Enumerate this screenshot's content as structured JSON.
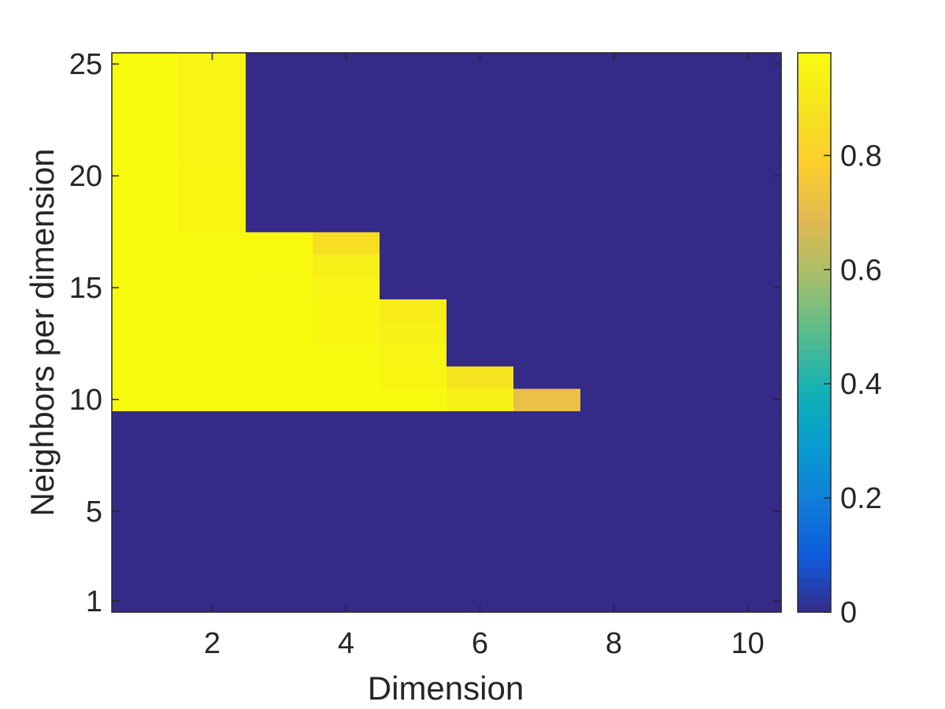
{
  "chart_data": {
    "type": "heatmap",
    "title": "",
    "xlabel": "Dimension",
    "ylabel": "Neighbors per dimension",
    "x": [
      1,
      2,
      3,
      4,
      5,
      6,
      7,
      8,
      9,
      10
    ],
    "y": [
      1,
      2,
      3,
      4,
      5,
      6,
      7,
      8,
      9,
      10,
      11,
      12,
      13,
      14,
      15,
      16,
      17,
      18,
      19,
      20,
      21,
      22,
      23,
      24,
      25
    ],
    "xlim": [
      0.5,
      10.5
    ],
    "ylim": [
      0.5,
      25.5
    ],
    "xticks": [
      2,
      4,
      6,
      8,
      10
    ],
    "yticks": [
      1,
      5,
      10,
      15,
      20,
      25
    ],
    "colormap": "parula",
    "clim": [
      0,
      0.98
    ],
    "colorbar": {
      "location": "right",
      "ticks": [
        0,
        0.2,
        0.4,
        0.6,
        0.8
      ],
      "tick_labels": [
        "0",
        "0.2",
        "0.4",
        "0.6",
        "0.8"
      ]
    },
    "values_note_rows": "z[row] is for y = row+1, columns for x = 1..10",
    "z": [
      [
        0,
        0,
        0,
        0,
        0,
        0,
        0,
        0,
        0,
        0
      ],
      [
        0,
        0,
        0,
        0,
        0,
        0,
        0,
        0,
        0,
        0
      ],
      [
        0,
        0,
        0,
        0,
        0,
        0,
        0,
        0,
        0,
        0
      ],
      [
        0,
        0,
        0,
        0,
        0,
        0,
        0,
        0,
        0,
        0
      ],
      [
        0,
        0,
        0,
        0,
        0,
        0,
        0,
        0,
        0,
        0
      ],
      [
        0,
        0,
        0,
        0,
        0,
        0,
        0,
        0,
        0,
        0
      ],
      [
        0,
        0,
        0,
        0,
        0,
        0,
        0,
        0,
        0,
        0
      ],
      [
        0,
        0,
        0,
        0,
        0,
        0,
        0,
        0,
        0,
        0
      ],
      [
        0,
        0,
        0,
        0,
        0,
        0,
        0,
        0,
        0,
        0
      ],
      [
        0.98,
        0.98,
        0.98,
        0.98,
        0.97,
        0.94,
        0.72,
        0,
        0,
        0
      ],
      [
        0.98,
        0.98,
        0.98,
        0.98,
        0.96,
        0.88,
        0,
        0,
        0,
        0
      ],
      [
        0.98,
        0.98,
        0.98,
        0.97,
        0.95,
        0,
        0,
        0,
        0,
        0
      ],
      [
        0.98,
        0.98,
        0.98,
        0.96,
        0.94,
        0,
        0,
        0,
        0,
        0
      ],
      [
        0.98,
        0.98,
        0.98,
        0.96,
        0.92,
        0,
        0,
        0,
        0,
        0
      ],
      [
        0.98,
        0.98,
        0.98,
        0.95,
        0,
        0,
        0,
        0,
        0,
        0
      ],
      [
        0.98,
        0.98,
        0.97,
        0.93,
        0,
        0,
        0,
        0,
        0,
        0
      ],
      [
        0.98,
        0.97,
        0.97,
        0.86,
        0,
        0,
        0,
        0,
        0,
        0
      ],
      [
        0.98,
        0.96,
        0,
        0,
        0,
        0,
        0,
        0,
        0,
        0
      ],
      [
        0.98,
        0.96,
        0,
        0,
        0,
        0,
        0,
        0,
        0,
        0
      ],
      [
        0.98,
        0.96,
        0,
        0,
        0,
        0,
        0,
        0,
        0,
        0
      ],
      [
        0.98,
        0.95,
        0,
        0,
        0,
        0,
        0,
        0,
        0,
        0
      ],
      [
        0.98,
        0.95,
        0,
        0,
        0,
        0,
        0,
        0,
        0,
        0
      ],
      [
        0.98,
        0.95,
        0,
        0,
        0,
        0,
        0,
        0,
        0,
        0
      ],
      [
        0.98,
        0.95,
        0,
        0,
        0,
        0,
        0,
        0,
        0,
        0
      ],
      [
        0.98,
        0.95,
        0,
        0,
        0,
        0,
        0,
        0,
        0,
        0
      ]
    ]
  }
}
